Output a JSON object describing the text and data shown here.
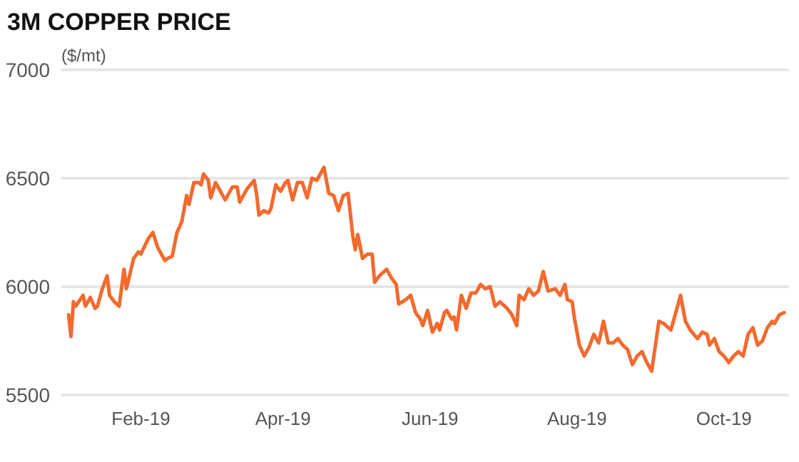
{
  "chart_data": {
    "type": "line",
    "title": "3M COPPER PRICE",
    "ylabel": "($/mt)",
    "x": [
      "2019-01-02",
      "2019-01-03",
      "2019-01-04",
      "2019-01-05",
      "2019-01-08",
      "2019-01-09",
      "2019-01-11",
      "2019-01-13",
      "2019-01-14",
      "2019-01-16",
      "2019-01-18",
      "2019-01-19",
      "2019-01-21",
      "2019-01-23",
      "2019-01-25",
      "2019-01-26",
      "2019-01-29",
      "2019-01-31",
      "2019-02-01",
      "2019-02-04",
      "2019-02-06",
      "2019-02-08",
      "2019-02-11",
      "2019-02-12",
      "2019-02-14",
      "2019-02-16",
      "2019-02-18",
      "2019-02-20",
      "2019-02-21",
      "2019-02-23",
      "2019-02-25",
      "2019-02-26",
      "2019-02-27",
      "2019-03-01",
      "2019-03-02",
      "2019-03-04",
      "2019-03-06",
      "2019-03-08",
      "2019-03-11",
      "2019-03-13",
      "2019-03-14",
      "2019-03-16",
      "2019-03-17",
      "2019-03-20",
      "2019-03-21",
      "2019-03-22",
      "2019-03-24",
      "2019-03-26",
      "2019-03-27",
      "2019-03-29",
      "2019-03-31",
      "2019-04-02",
      "2019-04-03",
      "2019-04-05",
      "2019-04-07",
      "2019-04-09",
      "2019-04-11",
      "2019-04-13",
      "2019-04-15",
      "2019-04-18",
      "2019-04-20",
      "2019-04-22",
      "2019-04-24",
      "2019-04-26",
      "2019-04-28",
      "2019-04-30",
      "2019-05-01",
      "2019-05-02",
      "2019-05-04",
      "2019-05-06",
      "2019-05-08",
      "2019-05-09",
      "2019-05-11",
      "2019-05-14",
      "2019-05-16",
      "2019-05-18",
      "2019-05-19",
      "2019-05-22",
      "2019-05-24",
      "2019-05-26",
      "2019-05-28",
      "2019-05-29",
      "2019-05-31",
      "2019-06-02",
      "2019-06-04",
      "2019-06-05",
      "2019-06-07",
      "2019-06-08",
      "2019-06-10",
      "2019-06-11",
      "2019-06-12",
      "2019-06-14",
      "2019-06-16",
      "2019-06-18",
      "2019-06-20",
      "2019-06-22",
      "2019-06-24",
      "2019-06-26",
      "2019-06-28",
      "2019-06-30",
      "2019-07-03",
      "2019-07-05",
      "2019-07-07",
      "2019-07-08",
      "2019-07-10",
      "2019-07-12",
      "2019-07-14",
      "2019-07-16",
      "2019-07-18",
      "2019-07-20",
      "2019-07-23",
      "2019-07-25",
      "2019-07-27",
      "2019-07-28",
      "2019-07-30",
      "2019-07-31",
      "2019-08-02",
      "2019-08-04",
      "2019-08-06",
      "2019-08-08",
      "2019-08-10",
      "2019-08-12",
      "2019-08-14",
      "2019-08-16",
      "2019-08-18",
      "2019-08-20",
      "2019-08-22",
      "2019-08-24",
      "2019-08-26",
      "2019-08-28",
      "2019-08-30",
      "2019-09-01",
      "2019-09-04",
      "2019-09-06",
      "2019-09-09",
      "2019-09-13",
      "2019-09-15",
      "2019-09-17",
      "2019-09-20",
      "2019-09-22",
      "2019-09-24",
      "2019-09-25",
      "2019-09-27",
      "2019-09-29",
      "2019-10-01",
      "2019-10-03",
      "2019-10-05",
      "2019-10-07",
      "2019-10-09",
      "2019-10-11",
      "2019-10-13",
      "2019-10-15",
      "2019-10-17",
      "2019-10-19",
      "2019-10-21",
      "2019-10-22",
      "2019-10-24",
      "2019-10-26"
    ],
    "series": [
      {
        "color": "#f26a2e",
        "values": [
          5870,
          5770,
          5930,
          5910,
          5960,
          5910,
          5950,
          5900,
          5910,
          5990,
          6050,
          5960,
          5930,
          5910,
          6080,
          5990,
          6130,
          6160,
          6150,
          6220,
          6250,
          6180,
          6120,
          6130,
          6140,
          6250,
          6300,
          6420,
          6380,
          6480,
          6480,
          6470,
          6520,
          6490,
          6410,
          6480,
          6440,
          6400,
          6460,
          6460,
          6390,
          6430,
          6450,
          6490,
          6430,
          6330,
          6350,
          6340,
          6360,
          6470,
          6440,
          6480,
          6490,
          6400,
          6480,
          6480,
          6410,
          6500,
          6490,
          6550,
          6430,
          6420,
          6350,
          6420,
          6430,
          6230,
          6170,
          6240,
          6130,
          6150,
          6150,
          6020,
          6050,
          6080,
          6040,
          6010,
          5920,
          5940,
          5960,
          5880,
          5850,
          5820,
          5890,
          5790,
          5830,
          5800,
          5880,
          5890,
          5850,
          5860,
          5800,
          5960,
          5900,
          5970,
          5970,
          6010,
          5990,
          6000,
          5910,
          5930,
          5900,
          5870,
          5820,
          5960,
          5940,
          5990,
          5960,
          5980,
          6070,
          5980,
          5990,
          5960,
          6010,
          5940,
          5930,
          5850,
          5730,
          5680,
          5720,
          5780,
          5740,
          5840,
          5740,
          5740,
          5760,
          5730,
          5710,
          5640,
          5680,
          5700,
          5650,
          5610,
          5840,
          5830,
          5800,
          5960,
          5840,
          5800,
          5760,
          5790,
          5780,
          5730,
          5760,
          5700,
          5680,
          5650,
          5680,
          5700,
          5680,
          5780,
          5810,
          5730,
          5750,
          5810,
          5840,
          5830,
          5870,
          5880
        ]
      }
    ],
    "xlim": [
      "2018-12-30",
      "2019-10-28"
    ],
    "xticks": [
      {
        "value": "2019-02-01",
        "label": "Feb-19"
      },
      {
        "value": "2019-04-01",
        "label": "Apr-19"
      },
      {
        "value": "2019-06-01",
        "label": "Jun-19"
      },
      {
        "value": "2019-08-01",
        "label": "Aug-19"
      },
      {
        "value": "2019-10-01",
        "label": "Oct-19"
      }
    ],
    "ylim": [
      5500,
      7000
    ],
    "yticks": [
      5500,
      6000,
      6500,
      7000
    ],
    "grid": "y",
    "marker": "none",
    "line_style": "solid"
  }
}
